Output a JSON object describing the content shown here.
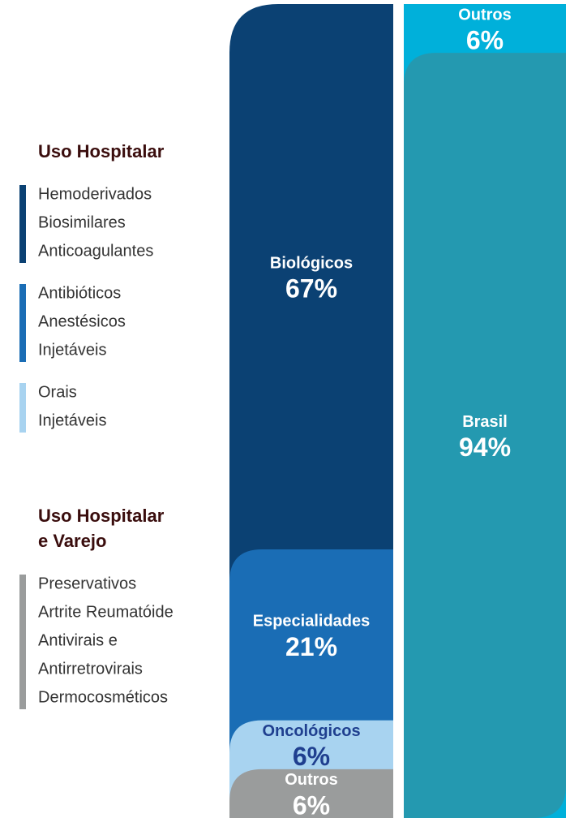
{
  "legend_groups": [
    {
      "title": [
        "Uso Hospitalar"
      ],
      "items": [
        {
          "color": "#0b4173",
          "lines": [
            "Hemoderivados",
            "Biosimilares",
            "Anticoagulantes"
          ]
        },
        {
          "color": "#1a6db5",
          "lines": [
            "Antibióticos",
            "Anestésicos",
            "Injetáveis"
          ]
        },
        {
          "color": "#a8d3f0",
          "lines": [
            "Orais",
            "Injetáveis"
          ]
        }
      ]
    },
    {
      "title": [
        "Uso Hospitalar",
        "e Varejo"
      ],
      "items": [
        {
          "color": "#9a9c9c",
          "lines": [
            "Preservativos",
            "Artrite Reumatóide",
            "Antivirais e",
            "Antirretrovirais",
            "Dermocosméticos"
          ]
        }
      ]
    }
  ],
  "chart_data": {
    "type": "stacked_column",
    "columns": [
      {
        "categories": [
          "Biológicos",
          "Especialidades",
          "Oncológicos",
          "Outros"
        ],
        "values": [
          67,
          21,
          6,
          6
        ],
        "value_labels": [
          "67%",
          "21%",
          "6%",
          "6%"
        ],
        "colors": [
          "#0b4173",
          "#1a6db5",
          "#a8d3f0",
          "#9a9c9c"
        ],
        "text_colors": [
          "#ffffff",
          "#ffffff",
          "#1f3f8f",
          "#ffffff"
        ]
      },
      {
        "categories": [
          "Outros",
          "Brasil"
        ],
        "values": [
          6,
          94
        ],
        "value_labels": [
          "6%",
          "94%"
        ],
        "colors": [
          "#00b0da",
          "#2499b0"
        ],
        "text_colors": [
          "#ffffff",
          "#ffffff"
        ]
      }
    ]
  }
}
